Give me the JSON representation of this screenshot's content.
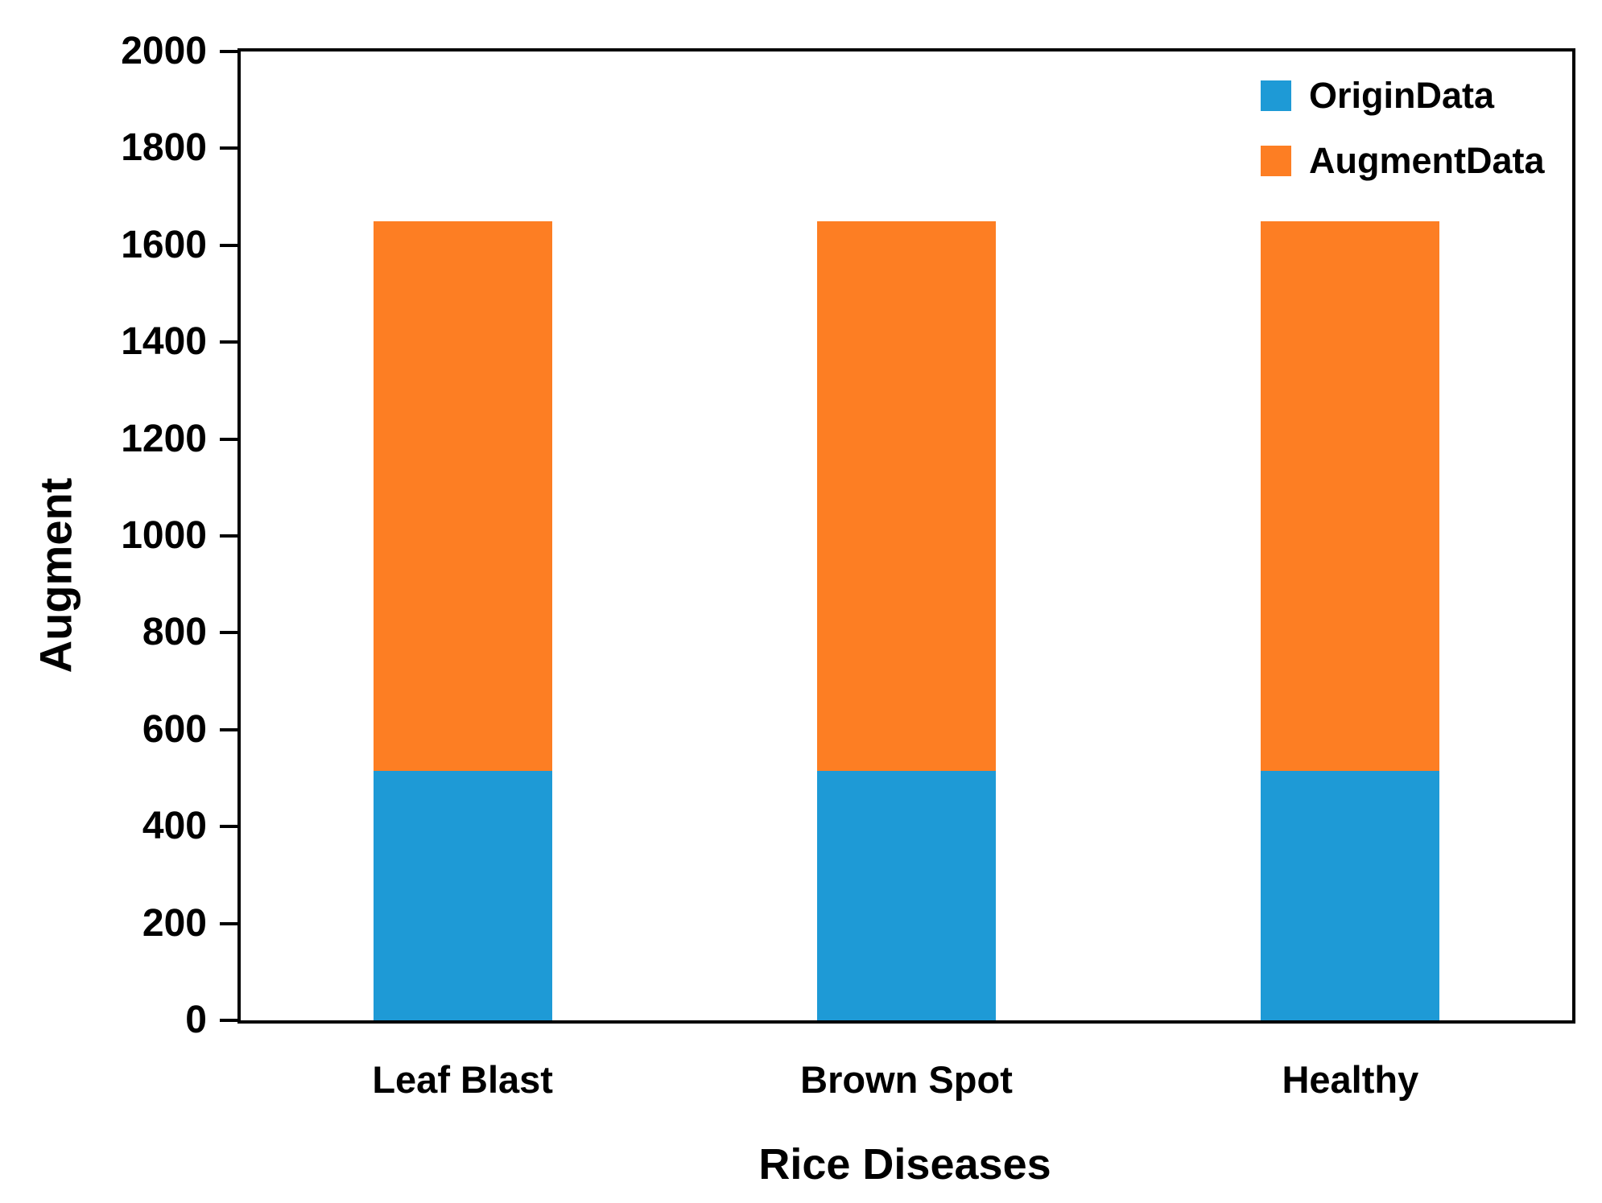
{
  "chart_data": {
    "type": "bar",
    "stacked": true,
    "title": "",
    "xlabel": "Rice Diseases",
    "ylabel": "Augment",
    "categories": [
      "Leaf Blast",
      "Brown Spot",
      "Healthy"
    ],
    "series": [
      {
        "name": "OriginData",
        "color": "#1E9AD6",
        "values": [
          515,
          515,
          515
        ]
      },
      {
        "name": "AugmentData",
        "color": "#FD7E23",
        "values": [
          1135,
          1135,
          1135
        ]
      }
    ],
    "stack_totals": [
      1650,
      1650,
      1650
    ],
    "ylim": [
      0,
      2000
    ],
    "yticks": [
      0,
      200,
      400,
      600,
      800,
      1000,
      1200,
      1400,
      1600,
      1800,
      2000
    ],
    "grid": "off",
    "legend_position": "top-right-inside",
    "axis_color": "#000000",
    "text_color": "#000000",
    "background_color": "#ffffff"
  }
}
